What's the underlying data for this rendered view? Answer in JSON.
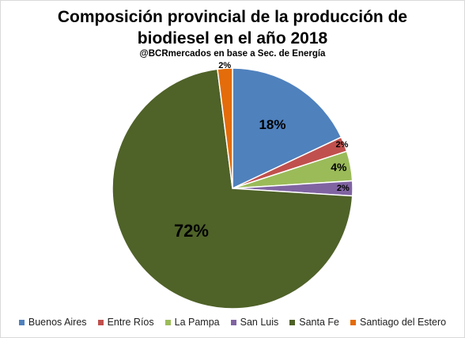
{
  "title_line1": "Composición provincial de la producción de",
  "title_line2": "biodiesel en el año 2018",
  "subtitle": "@BCRmercados en base a Sec. de Energía",
  "chart_data": {
    "type": "pie",
    "title": "Composición provincial de la producción de biodiesel en el año 2018",
    "subtitle": "@BCRmercados en base a Sec. de Energía",
    "categories": [
      "Buenos Aires",
      "Entre Ríos",
      "La Pampa",
      "San Luis",
      "Santa Fe",
      "Santiago del Estero"
    ],
    "values": [
      18,
      2,
      4,
      2,
      72,
      2
    ],
    "labels": [
      "18%",
      "2%",
      "4%",
      "2%",
      "72%",
      "2%"
    ],
    "colors": [
      "#4f81bd",
      "#c0504d",
      "#9bbb59",
      "#8064a2",
      "#4f6228",
      "#e46c0a"
    ],
    "legend_position": "bottom"
  }
}
